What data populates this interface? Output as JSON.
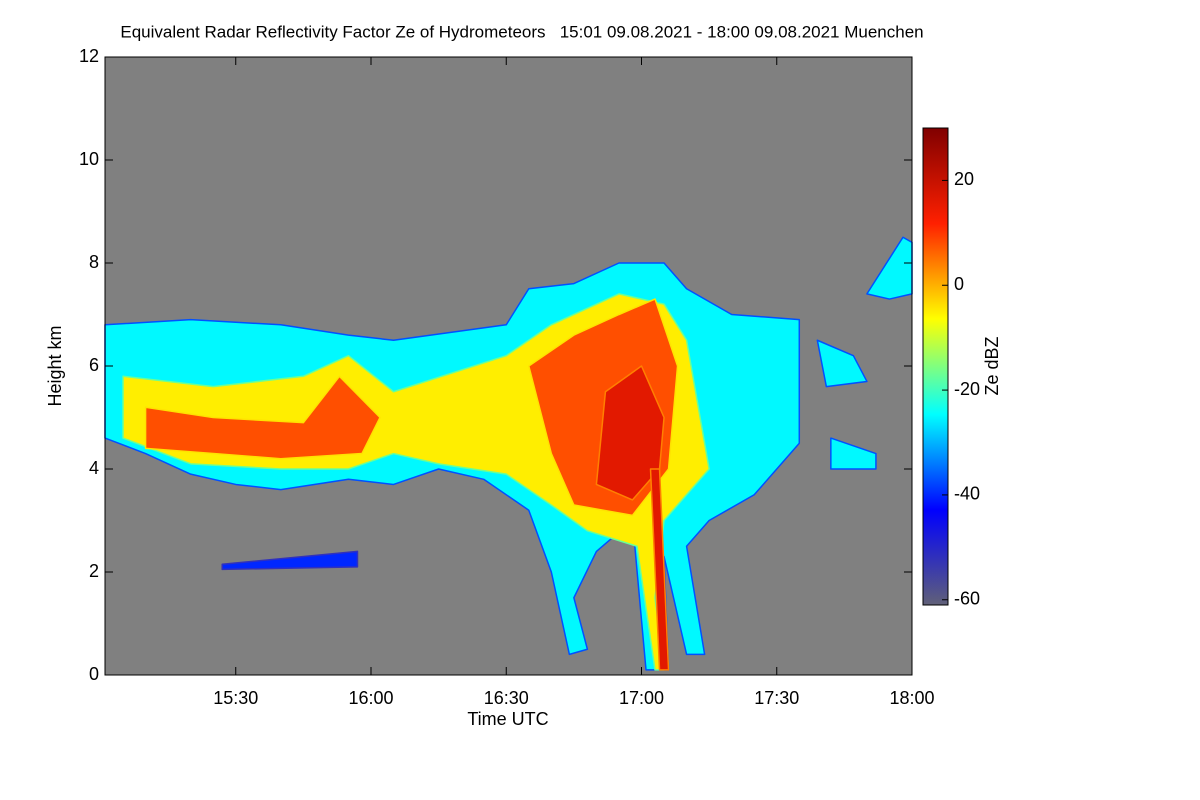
{
  "chart_data": {
    "type": "heatmap",
    "title": "Equivalent Radar Reflectivity Factor Ze of Hydrometeors   15:01 09.08.2021 - 18:00 09.08.2021 Muenchen",
    "x_label": "Time UTC",
    "y_label": "Height km",
    "colorbar_label": "Ze dBZ",
    "xlim": [
      "15:01",
      "18:00"
    ],
    "xticks": [
      "15:30",
      "16:00",
      "16:30",
      "17:00",
      "17:30",
      "18:00"
    ],
    "ylim": [
      0,
      12
    ],
    "yticks": [
      0,
      2,
      4,
      6,
      8,
      10,
      12
    ],
    "clim": [
      -61,
      30
    ],
    "cticks": [
      -60,
      -40,
      -20,
      0,
      20
    ],
    "background": "#808080",
    "colormap": [
      "#606078",
      "#0000ff",
      "#00ffff",
      "#ffff00",
      "#ff2000",
      "#800000"
    ],
    "regions": [
      {
        "value": -25,
        "points": [
          [
            "15:01",
            4.6
          ],
          [
            "15:01",
            6.8
          ],
          [
            "15:20",
            6.9
          ],
          [
            "15:40",
            6.8
          ],
          [
            "15:55",
            6.6
          ],
          [
            "16:05",
            6.5
          ],
          [
            "16:30",
            6.8
          ],
          [
            "16:35",
            7.5
          ],
          [
            "16:45",
            7.6
          ],
          [
            "16:55",
            8.0
          ],
          [
            "17:05",
            8.0
          ],
          [
            "17:10",
            7.5
          ],
          [
            "17:20",
            7.0
          ],
          [
            "17:35",
            6.9
          ],
          [
            "17:35",
            4.5
          ],
          [
            "17:25",
            3.5
          ],
          [
            "17:15",
            3.0
          ],
          [
            "17:10",
            2.5
          ],
          [
            "17:14",
            0.4
          ],
          [
            "17:10",
            0.4
          ],
          [
            "17:05",
            2.3
          ],
          [
            "17:06",
            0.1
          ],
          [
            "17:01",
            0.1
          ],
          [
            "16:58",
            3.0
          ],
          [
            "16:50",
            2.4
          ],
          [
            "16:45",
            1.5
          ],
          [
            "16:48",
            0.5
          ],
          [
            "16:44",
            0.4
          ],
          [
            "16:40",
            2.0
          ],
          [
            "16:35",
            3.2
          ],
          [
            "16:25",
            3.8
          ],
          [
            "16:15",
            4.0
          ],
          [
            "16:05",
            3.7
          ],
          [
            "15:55",
            3.8
          ],
          [
            "15:40",
            3.6
          ],
          [
            "15:30",
            3.7
          ],
          [
            "15:20",
            3.9
          ],
          [
            "15:10",
            4.3
          ]
        ]
      },
      {
        "value": -5,
        "points": [
          [
            "15:05",
            4.6
          ],
          [
            "15:05",
            5.8
          ],
          [
            "15:25",
            5.6
          ],
          [
            "15:45",
            5.8
          ],
          [
            "15:55",
            6.2
          ],
          [
            "16:05",
            5.5
          ],
          [
            "16:30",
            6.2
          ],
          [
            "16:40",
            6.8
          ],
          [
            "16:55",
            7.4
          ],
          [
            "17:05",
            7.2
          ],
          [
            "17:10",
            6.5
          ],
          [
            "17:15",
            4.0
          ],
          [
            "17:05",
            3.0
          ],
          [
            "17:03",
            1.5
          ],
          [
            "17:05",
            0.1
          ],
          [
            "17:03",
            0.1
          ],
          [
            "16:59",
            2.5
          ],
          [
            "16:48",
            2.8
          ],
          [
            "16:40",
            3.3
          ],
          [
            "16:30",
            3.9
          ],
          [
            "16:15",
            4.1
          ],
          [
            "16:05",
            4.3
          ],
          [
            "15:55",
            4.0
          ],
          [
            "15:40",
            4.0
          ],
          [
            "15:20",
            4.1
          ]
        ]
      },
      {
        "value": 8,
        "points": [
          [
            "15:10",
            4.4
          ],
          [
            "15:10",
            5.2
          ],
          [
            "15:25",
            5.0
          ],
          [
            "15:45",
            4.9
          ],
          [
            "15:53",
            5.8
          ],
          [
            "16:02",
            5.0
          ],
          [
            "15:58",
            4.3
          ],
          [
            "15:40",
            4.2
          ],
          [
            "15:25",
            4.3
          ]
        ]
      },
      {
        "value": 8,
        "points": [
          [
            "16:35",
            6.0
          ],
          [
            "16:45",
            6.6
          ],
          [
            "16:55",
            7.0
          ],
          [
            "17:03",
            7.3
          ],
          [
            "17:08",
            6.0
          ],
          [
            "17:06",
            4.0
          ],
          [
            "16:58",
            3.1
          ],
          [
            "16:45",
            3.3
          ],
          [
            "16:40",
            4.3
          ]
        ]
      },
      {
        "value": 16,
        "points": [
          [
            "16:52",
            5.5
          ],
          [
            "17:00",
            6.0
          ],
          [
            "17:05",
            5.0
          ],
          [
            "17:04",
            4.0
          ],
          [
            "16:58",
            3.4
          ],
          [
            "16:50",
            3.7
          ]
        ]
      },
      {
        "value": 16,
        "points": [
          [
            "17:02",
            4.0
          ],
          [
            "17:04",
            4.0
          ],
          [
            "17:06",
            0.1
          ],
          [
            "17:04",
            0.1
          ]
        ]
      },
      {
        "value": -25,
        "points": [
          [
            "17:50",
            7.4
          ],
          [
            "17:58",
            8.5
          ],
          [
            "18:00",
            8.4
          ],
          [
            "18:00",
            7.4
          ],
          [
            "17:55",
            7.3
          ]
        ]
      },
      {
        "value": -25,
        "points": [
          [
            "17:39",
            6.5
          ],
          [
            "17:47",
            6.2
          ],
          [
            "17:50",
            5.7
          ],
          [
            "17:41",
            5.6
          ]
        ]
      },
      {
        "value": -25,
        "points": [
          [
            "17:42",
            4.6
          ],
          [
            "17:52",
            4.3
          ],
          [
            "17:52",
            4.0
          ],
          [
            "17:42",
            4.0
          ]
        ]
      },
      {
        "value": -40,
        "points": [
          [
            "15:27",
            2.15
          ],
          [
            "15:57",
            2.4
          ],
          [
            "15:57",
            2.1
          ],
          [
            "15:27",
            2.05
          ]
        ]
      }
    ]
  }
}
